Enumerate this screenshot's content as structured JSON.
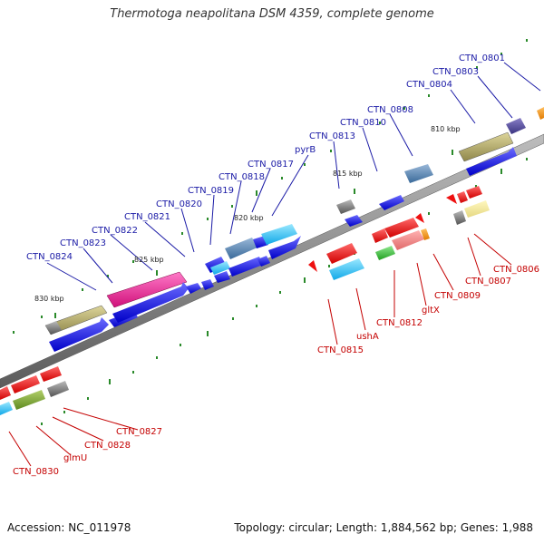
{
  "title": "Thermotoga neapolitana DSM 4359, complete genome",
  "footer": {
    "accession": "Accession: NC_011978",
    "summary": "Topology: circular; Length: 1,884,562 bp; Genes: 1,988"
  },
  "ruler": [
    "810 kbp",
    "815 kbp",
    "820 kbp",
    "825 kbp",
    "830 kbp"
  ],
  "forward_labels": [
    "CTN_0801",
    "CTN_0803",
    "CTN_0804",
    "CTN_0808",
    "CTN_0810",
    "CTN_0813",
    "pyrB",
    "CTN_0817",
    "CTN_0818",
    "CTN_0819",
    "CTN_0820",
    "CTN_0821",
    "CTN_0822",
    "CTN_0823",
    "CTN_0824"
  ],
  "reverse_labels": [
    "CTN_0806",
    "CTN_0807",
    "CTN_0809",
    "gltX",
    "CTN_0812",
    "ushA",
    "CTN_0815",
    "CTN_0827",
    "CTN_0828",
    "glmU",
    "CTN_0830"
  ],
  "colors": {
    "forward_label": "#1a1aa6",
    "reverse_label": "#c40000",
    "cds_forward": "#1010e0",
    "cds_reverse": "#ee1010",
    "tick": "#2a8a2a",
    "backbone": "#8a8a8a"
  }
}
